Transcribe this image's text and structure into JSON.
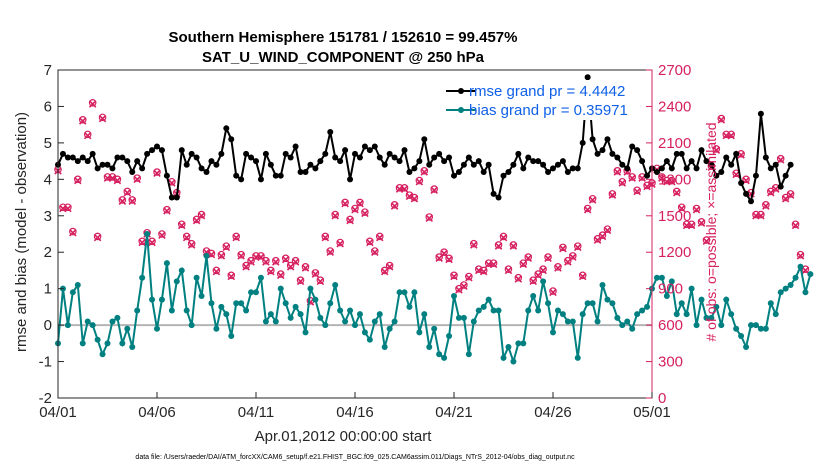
{
  "chart_data": {
    "type": "line",
    "title_line1": "Southern Hemisphere 151781 / 152610 = 99.457%",
    "title_line2": "SAT_U_WIND_COMPONENT @ 250 hPa",
    "ylabel_left": "rmse and bias (model - observation)",
    "ylabel_right": "# of obs: o=possible; ×=assimilated",
    "xlabel": "Apr.01,2012 00:00:00 start",
    "footnote": "data file: /Users/raeder/DAI/ATM_forcXX/CAM6_setup/f.e21.FHIST_BGC.f09_025.CAM6assim.011/Diags_NTrS_2012-04/obs_diag_output.nc",
    "ylim_left": [
      -2,
      7
    ],
    "ylim_right": [
      0,
      2700
    ],
    "xlim": [
      0,
      30
    ],
    "yticks_left": [
      "-2",
      "-1",
      "0",
      "1",
      "2",
      "3",
      "4",
      "5",
      "6",
      "7"
    ],
    "yticks_right": [
      "0",
      "300",
      "600",
      "900",
      "1200",
      "1500",
      "1800",
      "2100",
      "2400",
      "2700"
    ],
    "xticks": [
      {
        "pos": 0,
        "label": "04/01"
      },
      {
        "pos": 5,
        "label": "04/06"
      },
      {
        "pos": 10,
        "label": "04/11"
      },
      {
        "pos": 15,
        "label": "04/16"
      },
      {
        "pos": 20,
        "label": "04/21"
      },
      {
        "pos": 25,
        "label": "04/26"
      },
      {
        "pos": 30,
        "label": "05/01"
      }
    ],
    "legend": [
      {
        "label": "rmse grand pr = 4.4442",
        "color": "#000000"
      },
      {
        "label": "bias grand pr = 0.35971",
        "color": "#008080"
      }
    ],
    "colors": {
      "rmse": "#000000",
      "bias": "#008080",
      "obs": "#d62060",
      "zero": "#b4b4b4"
    },
    "x_step": 0.25,
    "rmse": [
      4.4,
      4.7,
      4.6,
      4.6,
      4.5,
      4.6,
      4.5,
      4.7,
      4.3,
      4.4,
      4.4,
      4.3,
      4.6,
      4.6,
      4.5,
      4.2,
      4.5,
      4.3,
      4.7,
      4.8,
      4.9,
      4.8,
      4.1,
      3.5,
      3.5,
      4.8,
      4.4,
      4.7,
      4.6,
      4.3,
      4.2,
      4.5,
      4.4,
      4.7,
      5.4,
      5.1,
      4.1,
      4.0,
      4.7,
      4.6,
      4.5,
      4.0,
      4.7,
      4.4,
      4.1,
      4.1,
      4.7,
      4.6,
      4.9,
      4.2,
      4.2,
      4.4,
      4.3,
      4.5,
      4.7,
      5.3,
      4.6,
      4.5,
      4.8,
      4.0,
      4.7,
      4.6,
      4.9,
      4.8,
      4.9,
      4.6,
      4.4,
      4.7,
      4.6,
      4.5,
      4.8,
      4.2,
      4.3,
      4.5,
      5.1,
      4.4,
      4.6,
      4.7,
      4.5,
      4.6,
      4.1,
      4.2,
      4.4,
      4.6,
      4.4,
      4.5,
      4.2,
      4.4,
      3.6,
      3.5,
      4.1,
      4.2,
      4.4,
      4.7,
      4.3,
      4.6,
      4.5,
      4.5,
      4.4,
      4.2,
      4.3,
      4.4,
      4.5,
      4.2,
      4.3,
      4.3,
      5.0,
      6.8,
      5.1,
      4.7,
      4.8,
      5.1,
      4.7,
      4.6,
      4.4,
      4.3,
      4.9,
      4.8,
      4.5,
      4.1,
      4.3,
      4.2,
      4.3,
      4.5,
      4.3,
      4.7,
      4.7,
      4.3,
      4.5,
      4.3,
      4.8,
      4.5,
      4.4,
      4.1,
      4.2,
      4.6,
      4.4,
      4.7,
      3.9,
      3.6,
      3.4,
      4.1,
      5.8,
      4.6,
      4.3,
      4.4,
      3.8,
      4.1,
      4.4
    ],
    "bias": [
      -0.5,
      1.0,
      0.0,
      0.9,
      1.1,
      -0.5,
      0.1,
      0.0,
      -0.4,
      -0.8,
      -0.5,
      0.1,
      0.2,
      -0.5,
      -0.1,
      -0.6,
      0.4,
      1.3,
      2.5,
      0.7,
      -0.1,
      0.7,
      1.7,
      0.4,
      1.2,
      1.5,
      0.4,
      0.0,
      1.3,
      0.8,
      1.9,
      0.6,
      -0.1,
      0.5,
      0.3,
      -0.3,
      0.6,
      0.6,
      0.4,
      0.9,
      0.9,
      1.3,
      0.1,
      0.3,
      0.1,
      1.0,
      0.6,
      0.2,
      0.5,
      0.3,
      -0.2,
      1.0,
      0.7,
      0.2,
      0.0,
      0.6,
      1.1,
      0.4,
      0.1,
      0.4,
      0.0,
      0.3,
      -0.2,
      -0.4,
      0.1,
      0.3,
      -0.6,
      -0.1,
      0.1,
      0.9,
      0.9,
      0.5,
      0.9,
      -0.2,
      0.3,
      -0.6,
      -0.1,
      -0.8,
      -0.9,
      -0.3,
      0.8,
      0.2,
      0.2,
      -0.8,
      0.1,
      0.4,
      0.5,
      0.7,
      0.4,
      0.4,
      -0.9,
      -0.6,
      -1.0,
      -0.5,
      -0.5,
      0.4,
      0.8,
      0.4,
      1.2,
      0.6,
      -0.2,
      0.4,
      0.3,
      0.1,
      0.1,
      -0.9,
      0.3,
      0.6,
      0.6,
      0.1,
      1.1,
      0.7,
      0.6,
      0.2,
      0.0,
      0.1,
      -0.1,
      0.3,
      0.4,
      0.5,
      1.0,
      1.3,
      1.3,
      0.8,
      1.2,
      0.3,
      0.6,
      0.3,
      1.0,
      0.0,
      0.7,
      0.2,
      0.2,
      0.5,
      0.0,
      0.7,
      0.3,
      -0.1,
      -0.3,
      -0.6,
      0.0,
      0.0,
      -0.1,
      -0.1,
      0.6,
      0.3,
      0.9,
      1.0,
      1.1,
      1.3,
      1.6,
      0.9,
      1.4
    ],
    "obs_assimilated": [
      1870,
      1560,
      1560,
      1360,
      1790,
      2280,
      2160,
      2420,
      1320,
      2300,
      1810,
      1810,
      1790,
      1620,
      1690,
      1620,
      1800,
      1280,
      1350,
      1280,
      1850,
      1340,
      1540,
      1770,
      1680,
      1420,
      1320,
      1260,
      1460,
      1500,
      1200,
      1180,
      1040,
      1170,
      1240,
      1000,
      1320,
      1170,
      1080,
      1120,
      1160,
      1160,
      1120,
      1040,
      1120,
      1010,
      1140,
      1080,
      1120,
      960,
      1070,
      790,
      1020,
      960,
      1320,
      1200,
      1500,
      1270,
      1600,
      1460,
      1550,
      1600,
      1520,
      1280,
      1200,
      1320,
      1040,
      1080,
      1580,
      1720,
      1720,
      1660,
      1640,
      1780,
      1860,
      1480,
      1710,
      1150,
      1190,
      1140,
      1000,
      890,
      920,
      990,
      1260,
      1050,
      1040,
      1100,
      1100,
      1250,
      1320,
      1050,
      1250,
      980,
      1100,
      1150,
      960,
      1010,
      1050,
      1150,
      870,
      1070,
      1230,
      1120,
      1160,
      1240,
      1000,
      1550,
      1630,
      1300,
      1330,
      1380,
      1670,
      1860,
      1770,
      1860,
      1810,
      1700,
      1810,
      1740,
      1760,
      1880,
      1810,
      1780,
      1780,
      1690,
      1560,
      1420,
      1420,
      1550,
      1440,
      1290,
      1900,
      2040,
      2290,
      2160,
      2160,
      1840,
      2000,
      1790,
      1680,
      1500,
      1500,
      1580,
      1690,
      1720,
      1960,
      1640,
      1670,
      1420,
      1170,
      1050
    ],
    "obs_possible": [
      1880,
      1570,
      1570,
      1370,
      1800,
      2290,
      2170,
      2430,
      1330,
      2310,
      1820,
      1820,
      1800,
      1630,
      1700,
      1630,
      1810,
      1290,
      1360,
      1290,
      1860,
      1350,
      1550,
      1780,
      1690,
      1430,
      1330,
      1270,
      1470,
      1510,
      1210,
      1190,
      1050,
      1180,
      1250,
      1010,
      1330,
      1180,
      1090,
      1130,
      1170,
      1170,
      1130,
      1050,
      1130,
      1020,
      1150,
      1090,
      1130,
      970,
      1080,
      800,
      1030,
      970,
      1330,
      1210,
      1510,
      1280,
      1610,
      1470,
      1560,
      1610,
      1530,
      1290,
      1210,
      1330,
      1050,
      1090,
      1590,
      1730,
      1730,
      1670,
      1650,
      1790,
      1870,
      1490,
      1720,
      1160,
      1200,
      1150,
      1010,
      900,
      930,
      1000,
      1270,
      1060,
      1050,
      1110,
      1110,
      1260,
      1330,
      1060,
      1260,
      990,
      1110,
      1160,
      970,
      1020,
      1060,
      1160,
      880,
      1080,
      1240,
      1130,
      1170,
      1250,
      1010,
      1560,
      1640,
      1310,
      1340,
      1390,
      1680,
      1870,
      1780,
      1870,
      1820,
      1710,
      1820,
      1750,
      1770,
      1890,
      1820,
      1790,
      1790,
      1700,
      1570,
      1430,
      1430,
      1560,
      1450,
      1300,
      1910,
      2050,
      2300,
      2170,
      2170,
      1850,
      2010,
      1800,
      1690,
      1510,
      1510,
      1590,
      1700,
      1730,
      1970,
      1650,
      1680,
      1430,
      1180,
      1060
    ]
  }
}
